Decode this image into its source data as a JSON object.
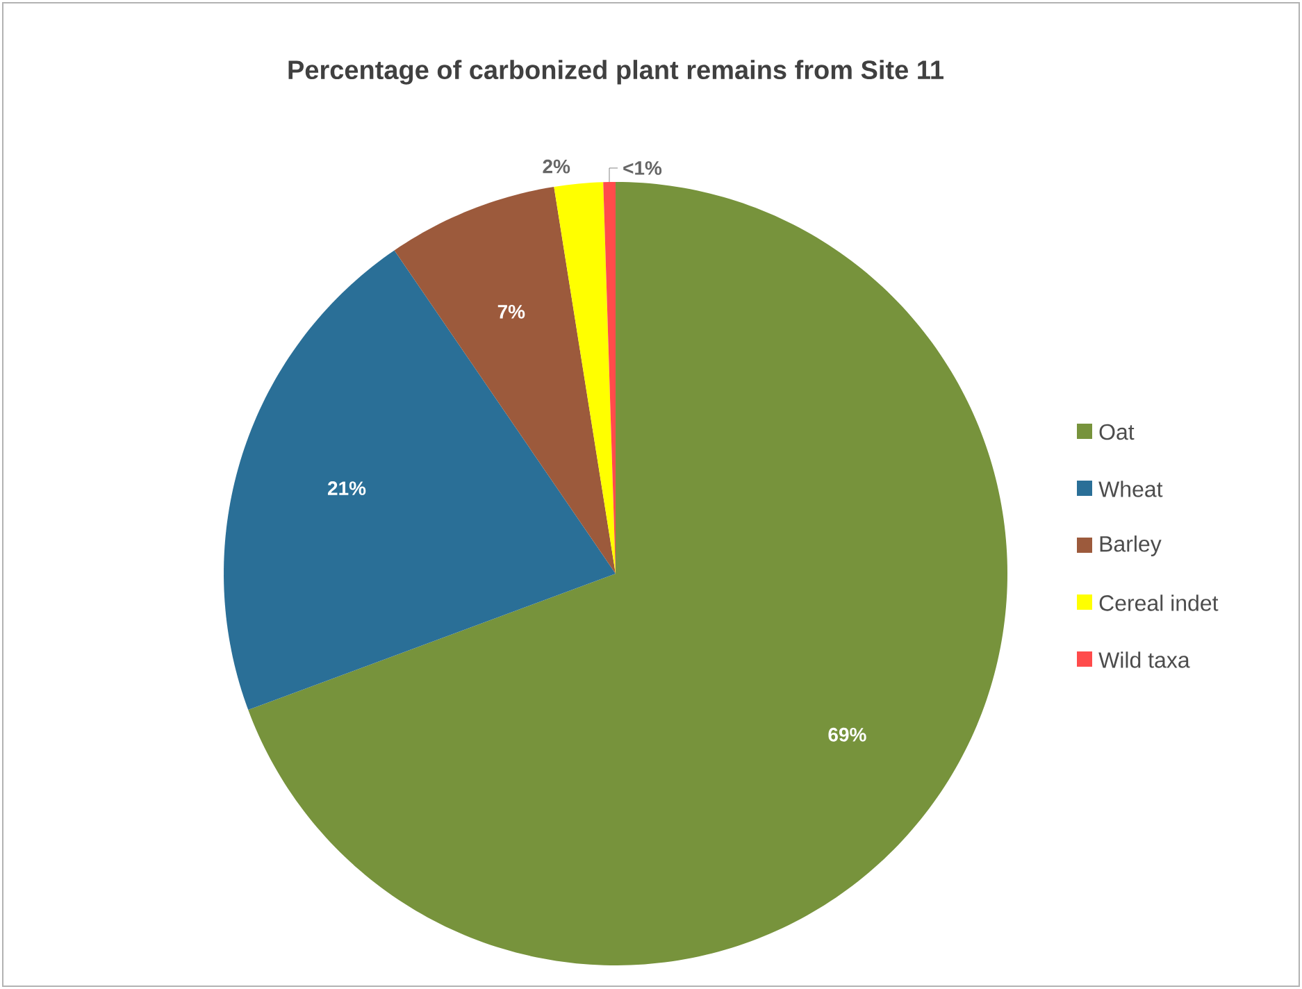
{
  "chart_data": {
    "type": "pie",
    "title": "Percentage of carbonized plant remains from Site 11",
    "categories": [
      "Oat",
      "Wheat",
      "Barley",
      "Cereal indet",
      "Wild taxa"
    ],
    "values": [
      69,
      21,
      7,
      2,
      0.5
    ],
    "value_labels": [
      "69%",
      "21%",
      "7%",
      "2%",
      "<1%"
    ],
    "colors": [
      "#77933c",
      "#2a6f97",
      "#9c5a3c",
      "#ffff00",
      "#ff4b4b"
    ],
    "legend": "right"
  }
}
